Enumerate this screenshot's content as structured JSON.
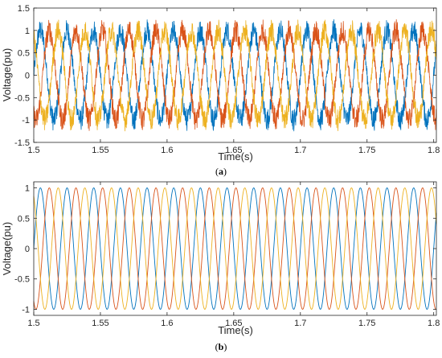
{
  "chart_data": [
    {
      "type": "line",
      "panel": "a",
      "caption": "a",
      "xlabel": "Time(s)",
      "ylabel": "Voltage(pu)",
      "xlim": [
        1.5,
        1.802
      ],
      "ylim": [
        -1.5,
        1.5
      ],
      "x_ticks": [
        "1.5",
        "1.55",
        "1.6",
        "1.65",
        "1.7",
        "1.75",
        "1.8"
      ],
      "y_ticks": [
        "1.5",
        "1",
        "0.5",
        "0",
        "-0.5",
        "-1",
        "-1.5"
      ],
      "grid": false,
      "legend": "none",
      "signal": "noisy three-phase sinusoid",
      "frequency_hz": 50,
      "amplitude": 1.0,
      "noise_amplitude": 0.25,
      "series": [
        {
          "phase_deg": 0,
          "color": "#0072BD"
        },
        {
          "phase_deg": -120,
          "color": "#D95319"
        },
        {
          "phase_deg": 120,
          "color": "#EDB120"
        }
      ]
    },
    {
      "type": "line",
      "panel": "b",
      "caption": "b",
      "xlabel": "Time(s)",
      "ylabel": "Voltage(pu)",
      "xlim": [
        1.5,
        1.802
      ],
      "ylim": [
        -1.1,
        1.1
      ],
      "x_ticks": [
        "1.5",
        "1.55",
        "1.6",
        "1.65",
        "1.7",
        "1.75",
        "1.8"
      ],
      "y_ticks": [
        "1",
        "0.5",
        "0",
        "-0.5",
        "-1"
      ],
      "grid": false,
      "legend": "none",
      "signal": "clean three-phase sinusoid",
      "frequency_hz": 50,
      "amplitude": 1.0,
      "noise_amplitude": 0,
      "series": [
        {
          "phase_deg": 0,
          "color": "#0072BD"
        },
        {
          "phase_deg": -120,
          "color": "#D95319"
        },
        {
          "phase_deg": 120,
          "color": "#EDB120"
        }
      ]
    }
  ]
}
